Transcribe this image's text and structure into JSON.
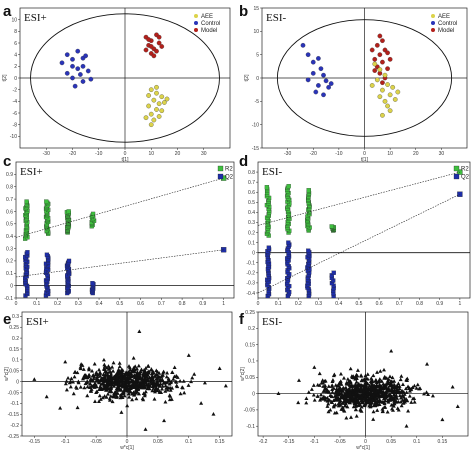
{
  "figure": {
    "panels": [
      "a",
      "b",
      "c",
      "d",
      "e",
      "f"
    ],
    "modes": [
      "ESI+",
      "ESI-",
      "ESI+",
      "ESI-",
      "ESI+",
      "ESI-"
    ]
  },
  "colors": {
    "AEE": "#dcd34a",
    "Control": "#2a34b8",
    "Model": "#b3201b",
    "R2": "#3fbf3f",
    "Q2": "#1e2ea8",
    "loading": "#111111"
  },
  "chart_data": [
    {
      "id": "a",
      "type": "scatter",
      "title": "ESI+",
      "xlabel": "t[1]",
      "ylabel": "t[2]",
      "xlim": [
        -40,
        40
      ],
      "ylim": [
        -12,
        12
      ],
      "xticks": [
        -30,
        -20,
        -10,
        0,
        10,
        20,
        30
      ],
      "yticks": [
        -10,
        -8,
        -6,
        -4,
        -2,
        0,
        2,
        4,
        6,
        8,
        10
      ],
      "legend": {
        "position": "top-right",
        "entries": [
          "AEE",
          "Control",
          "Model"
        ]
      },
      "ellipse": {
        "rx": 36,
        "ry": 11
      },
      "series": [
        {
          "name": "Control",
          "points": [
            [
              -22,
              4
            ],
            [
              -20,
              3.2
            ],
            [
              -18,
              4.6
            ],
            [
              -16,
              3.4
            ],
            [
              -20,
              2
            ],
            [
              -18,
              1.6
            ],
            [
              -16,
              2
            ],
            [
              -14,
              1.2
            ],
            [
              -24,
              2.6
            ],
            [
              -17,
              0.6
            ],
            [
              -20,
              0
            ],
            [
              -16,
              -0.6
            ],
            [
              -13,
              -0.2
            ],
            [
              -15,
              3.8
            ],
            [
              -19,
              -1.4
            ],
            [
              -22,
              0.8
            ]
          ]
        },
        {
          "name": "Model",
          "points": [
            [
              8,
              7
            ],
            [
              10,
              6.4
            ],
            [
              12,
              7.4
            ],
            [
              9,
              5.6
            ],
            [
              11,
              5
            ],
            [
              13,
              6
            ],
            [
              10,
              4.2
            ],
            [
              12,
              4.6
            ],
            [
              8,
              4.8
            ],
            [
              14,
              5.4
            ],
            [
              11,
              3.8
            ],
            [
              9,
              6.6
            ],
            [
              13,
              7
            ],
            [
              10,
              5.4
            ]
          ]
        },
        {
          "name": "AEE",
          "points": [
            [
              10,
              -2
            ],
            [
              12,
              -2.6
            ],
            [
              14,
              -3.2
            ],
            [
              11,
              -3.8
            ],
            [
              13,
              -4.4
            ],
            [
              9,
              -4.8
            ],
            [
              12,
              -5.4
            ],
            [
              10,
              -6.2
            ],
            [
              14,
              -5.6
            ],
            [
              8,
              -6.8
            ],
            [
              11,
              -7.2
            ],
            [
              13,
              -6.6
            ],
            [
              15,
              -4.2
            ],
            [
              9,
              -3
            ],
            [
              12,
              -1.6
            ],
            [
              16,
              -3.6
            ],
            [
              10,
              -8
            ]
          ]
        }
      ]
    },
    {
      "id": "b",
      "type": "scatter",
      "title": "ESI-",
      "xlabel": "t[1]",
      "ylabel": "t[2]",
      "xlim": [
        -40,
        40
      ],
      "ylim": [
        -15,
        15
      ],
      "xticks": [
        -30,
        -20,
        -10,
        0,
        10,
        20,
        30
      ],
      "yticks": [
        -15,
        -10,
        -5,
        0,
        5,
        10,
        15
      ],
      "legend": {
        "position": "top-right",
        "entries": [
          "AEE",
          "Control",
          "Model"
        ]
      },
      "ellipse": {
        "rx": 34,
        "ry": 12.5
      },
      "series": [
        {
          "name": "Control",
          "points": [
            [
              -24,
              7
            ],
            [
              -22,
              5
            ],
            [
              -20,
              3.4
            ],
            [
              -18,
              4.2
            ],
            [
              -17,
              2
            ],
            [
              -16,
              0.6
            ],
            [
              -15,
              -0.6
            ],
            [
              -18,
              -1.6
            ],
            [
              -14,
              -2
            ],
            [
              -20,
              1
            ],
            [
              -22,
              -0.4
            ],
            [
              -16,
              -3.6
            ],
            [
              -13,
              -1.2
            ],
            [
              -19,
              -3
            ]
          ]
        },
        {
          "name": "Model",
          "points": [
            [
              6,
              9
            ],
            [
              7,
              8
            ],
            [
              5,
              7
            ],
            [
              8,
              6
            ],
            [
              6,
              5
            ],
            [
              4,
              4
            ],
            [
              7,
              3.4
            ],
            [
              5,
              2.4
            ],
            [
              9,
              2
            ],
            [
              6,
              1
            ],
            [
              8,
              0
            ],
            [
              3,
              6
            ],
            [
              10,
              4
            ],
            [
              7,
              -1
            ],
            [
              4,
              1.6
            ],
            [
              9,
              5.4
            ]
          ]
        },
        {
          "name": "AEE",
          "points": [
            [
              4,
              3
            ],
            [
              6,
              1.8
            ],
            [
              8,
              0.6
            ],
            [
              5,
              -0.4
            ],
            [
              9,
              -1.4
            ],
            [
              7,
              -2.6
            ],
            [
              10,
              -3.6
            ],
            [
              6,
              -4
            ],
            [
              11,
              -2
            ],
            [
              8,
              -5
            ],
            [
              12,
              -4.6
            ],
            [
              9,
              -6
            ],
            [
              3,
              -1.6
            ],
            [
              10,
              -7
            ],
            [
              13,
              -3
            ],
            [
              7,
              -8
            ]
          ]
        }
      ]
    },
    {
      "id": "c",
      "type": "scatter",
      "title": "ESI+",
      "xlim": [
        0,
        1.05
      ],
      "ylim": [
        -0.1,
        1.0
      ],
      "xticks": [
        0,
        0.1,
        0.2,
        0.3,
        0.4,
        0.5,
        0.6,
        0.7,
        0.8,
        0.9,
        1
      ],
      "yticks": [
        -0.1,
        0,
        0.1,
        0.2,
        0.3,
        0.4,
        0.5,
        0.6,
        0.7,
        0.8,
        0.9
      ],
      "legend": {
        "position": "top-right",
        "entries": [
          "R2",
          "Q2"
        ]
      },
      "intercepts": {
        "R2": [
          [
            0,
            0.39
          ],
          [
            1,
            0.87
          ]
        ],
        "Q2": [
          [
            0,
            0.07
          ],
          [
            1,
            0.29
          ]
        ]
      },
      "series": [
        {
          "name": "R2",
          "x_groups": [
            0.05,
            0.15,
            0.25,
            0.37
          ],
          "y_ranges": [
            [
              0.38,
              0.68
            ],
            [
              0.42,
              0.68
            ],
            [
              0.43,
              0.6
            ],
            [
              0.48,
              0.58
            ]
          ],
          "final": [
            1,
            0.87
          ]
        },
        {
          "name": "Q2",
          "x_groups": [
            0.05,
            0.15,
            0.25,
            0.37
          ],
          "y_ranges": [
            [
              -0.08,
              0.27
            ],
            [
              -0.08,
              0.25
            ],
            [
              -0.06,
              0.2
            ],
            [
              -0.06,
              0.02
            ]
          ],
          "final": [
            1,
            0.29
          ]
        }
      ]
    },
    {
      "id": "d",
      "type": "scatter",
      "title": "ESI-",
      "xlim": [
        0,
        1.05
      ],
      "ylim": [
        -0.45,
        0.9
      ],
      "xticks": [
        0,
        0.1,
        0.2,
        0.3,
        0.4,
        0.5,
        0.6,
        0.7,
        0.8,
        0.9,
        1
      ],
      "yticks": [
        -0.4,
        -0.3,
        -0.2,
        -0.1,
        0,
        0.1,
        0.2,
        0.3,
        0.4,
        0.5,
        0.6,
        0.7,
        0.8
      ],
      "legend": {
        "position": "top-right",
        "entries": [
          "R2",
          "Q2"
        ]
      },
      "intercepts": {
        "R2": [
          [
            0,
            0.27
          ],
          [
            1,
            0.8
          ]
        ],
        "Q2": [
          [
            0,
            -0.4
          ],
          [
            1,
            0.58
          ]
        ]
      },
      "series": [
        {
          "name": "R2",
          "x_groups": [
            0.05,
            0.15,
            0.25,
            0.37
          ],
          "y_ranges": [
            [
              0.17,
              0.65
            ],
            [
              0.2,
              0.66
            ],
            [
              0.22,
              0.62
            ],
            [
              0.22,
              0.26
            ]
          ],
          "final": [
            1,
            0.8
          ]
        },
        {
          "name": "Q2",
          "x_groups": [
            0.05,
            0.15,
            0.25,
            0.37
          ],
          "y_ranges": [
            [
              -0.43,
              0.05
            ],
            [
              -0.43,
              0.1
            ],
            [
              -0.43,
              0.02
            ],
            [
              -0.43,
              -0.2
            ]
          ],
          "final": [
            1,
            0.58
          ]
        }
      ]
    },
    {
      "id": "e",
      "type": "scatter",
      "title": "ESI+",
      "xlabel": "w*c[1]",
      "ylabel": "w*c[2]",
      "xlim": [
        -0.17,
        0.17
      ],
      "ylim": [
        -0.25,
        0.32
      ],
      "xticks": [
        -0.15,
        -0.1,
        -0.05,
        0,
        0.05,
        0.1,
        0.15
      ],
      "yticks": [
        -0.25,
        -0.2,
        -0.15,
        -0.1,
        -0.05,
        0,
        0.05,
        0.1,
        0.15,
        0.2,
        0.25,
        0.3
      ],
      "series": [
        {
          "name": "loadings",
          "count": 700,
          "spread_x": 0.04,
          "spread_y": 0.035,
          "outliers": [
            [
              0.02,
              0.23
            ],
            [
              -0.15,
              0.01
            ],
            [
              -0.13,
              -0.07
            ],
            [
              0.12,
              -0.1
            ],
            [
              0.14,
              -0.15
            ],
            [
              0.15,
              0.06
            ],
            [
              -0.08,
              -0.12
            ],
            [
              0.06,
              -0.18
            ],
            [
              0.1,
              0.12
            ],
            [
              -0.1,
              0.09
            ],
            [
              0.03,
              -0.22
            ],
            [
              0.16,
              -0.02
            ]
          ]
        }
      ]
    },
    {
      "id": "f",
      "type": "scatter",
      "title": "ESI-",
      "xlabel": "w*c[1]",
      "ylabel": "w*c[2]",
      "xlim": [
        -0.21,
        0.2
      ],
      "ylim": [
        -0.13,
        0.25
      ],
      "xticks": [
        -0.2,
        -0.15,
        -0.1,
        -0.05,
        0,
        0.05,
        0.1,
        0.15
      ],
      "yticks": [
        -0.1,
        -0.05,
        0,
        0.05,
        0.1,
        0.15,
        0.2,
        0.25
      ],
      "series": [
        {
          "name": "loadings",
          "count": 750,
          "spread_x": 0.045,
          "spread_y": 0.025,
          "outliers": [
            [
              -0.17,
              0.0
            ],
            [
              0.17,
              0.02
            ],
            [
              0.15,
              -0.08
            ],
            [
              0.12,
              0.09
            ],
            [
              -0.1,
              0.08
            ],
            [
              0.05,
              0.13
            ],
            [
              -0.06,
              -0.06
            ],
            [
              0.08,
              -0.1
            ],
            [
              0.18,
              -0.04
            ],
            [
              -0.13,
              0.04
            ]
          ]
        }
      ]
    }
  ]
}
